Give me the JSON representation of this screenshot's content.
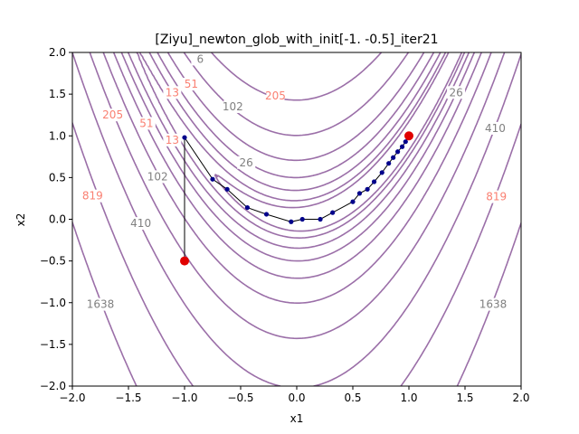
{
  "chart_data": {
    "type": "line",
    "title": "[Ziyu]_newton_glob_with_init[-1.  -0.5]_iter21",
    "xlabel": "x1",
    "ylabel": "x2",
    "xlim": [
      -2.0,
      2.0
    ],
    "ylim": [
      -2.0,
      2.0
    ],
    "xticks": [
      -2.0,
      -1.5,
      -1.0,
      -0.5,
      0.0,
      0.5,
      1.0,
      1.5,
      2.0
    ],
    "yticks": [
      -2.0,
      -1.5,
      -1.0,
      -0.5,
      0.0,
      0.5,
      1.0,
      1.5,
      2.0
    ],
    "xtick_labels": [
      "−2.0",
      "−1.5",
      "−1.0",
      "−0.5",
      "0.0",
      "0.5",
      "1.0",
      "1.5",
      "2.0"
    ],
    "ytick_labels": [
      "−2.0",
      "−1.5",
      "−1.0",
      "−0.5",
      "0.0",
      "0.5",
      "1.0",
      "1.5",
      "2.0"
    ],
    "grid": false,
    "contour": {
      "function": "rosenbrock",
      "levels": [
        3,
        6,
        13,
        26,
        51,
        102,
        205,
        410,
        819,
        1638
      ],
      "color": "#9b6fa8",
      "label_colors": [
        "#808080",
        "#fa8072"
      ],
      "labels": [
        {
          "text": "6",
          "x": -0.86,
          "y": 1.92,
          "color": "#808080"
        },
        {
          "text": "13",
          "x": -1.11,
          "y": 1.52,
          "color": "#fa8072"
        },
        {
          "text": "51",
          "x": -0.94,
          "y": 1.62,
          "color": "#fa8072"
        },
        {
          "text": "102",
          "x": -0.57,
          "y": 1.35,
          "color": "#808080"
        },
        {
          "text": "205",
          "x": -0.19,
          "y": 1.48,
          "color": "#fa8072"
        },
        {
          "text": "205",
          "x": -1.64,
          "y": 1.25,
          "color": "#fa8072"
        },
        {
          "text": "51",
          "x": -1.34,
          "y": 1.15,
          "color": "#fa8072"
        },
        {
          "text": "13",
          "x": -1.11,
          "y": 0.95,
          "color": "#fa8072"
        },
        {
          "text": "102",
          "x": -1.24,
          "y": 0.51,
          "color": "#808080"
        },
        {
          "text": "26",
          "x": -0.45,
          "y": 0.68,
          "color": "#808080"
        },
        {
          "text": "819",
          "x": -1.82,
          "y": 0.28,
          "color": "#fa8072"
        },
        {
          "text": "410",
          "x": -1.39,
          "y": -0.05,
          "color": "#808080"
        },
        {
          "text": "1638",
          "x": -1.75,
          "y": -1.02,
          "color": "#808080"
        },
        {
          "text": "26",
          "x": 1.42,
          "y": 1.52,
          "color": "#808080"
        },
        {
          "text": "410",
          "x": 1.77,
          "y": 1.09,
          "color": "#808080"
        },
        {
          "text": "819",
          "x": 1.78,
          "y": 0.27,
          "color": "#fa8072"
        },
        {
          "text": "1638",
          "x": 1.75,
          "y": -1.02,
          "color": "#808080"
        }
      ]
    },
    "series": [
      {
        "type": "line",
        "color": "#000000",
        "marker_color": "#00008b",
        "x": [
          -1.0,
          -1.0,
          -0.75,
          -0.62,
          -0.44,
          -0.27,
          -0.05,
          0.05,
          0.21,
          0.32,
          0.5,
          0.56,
          0.63,
          0.69,
          0.76,
          0.82,
          0.86,
          0.9,
          0.94,
          0.97,
          0.99,
          1.0
        ],
        "y": [
          -0.5,
          0.98,
          0.48,
          0.36,
          0.14,
          0.06,
          -0.03,
          0.0,
          0.0,
          0.08,
          0.21,
          0.31,
          0.36,
          0.45,
          0.56,
          0.67,
          0.74,
          0.81,
          0.87,
          0.93,
          0.98,
          1.0
        ]
      }
    ],
    "markers": [
      {
        "name": "start",
        "x": -1.0,
        "y": -0.5,
        "color": "#e00000"
      },
      {
        "name": "minimum",
        "x": 1.0,
        "y": 1.0,
        "color": "#e00000"
      }
    ]
  }
}
